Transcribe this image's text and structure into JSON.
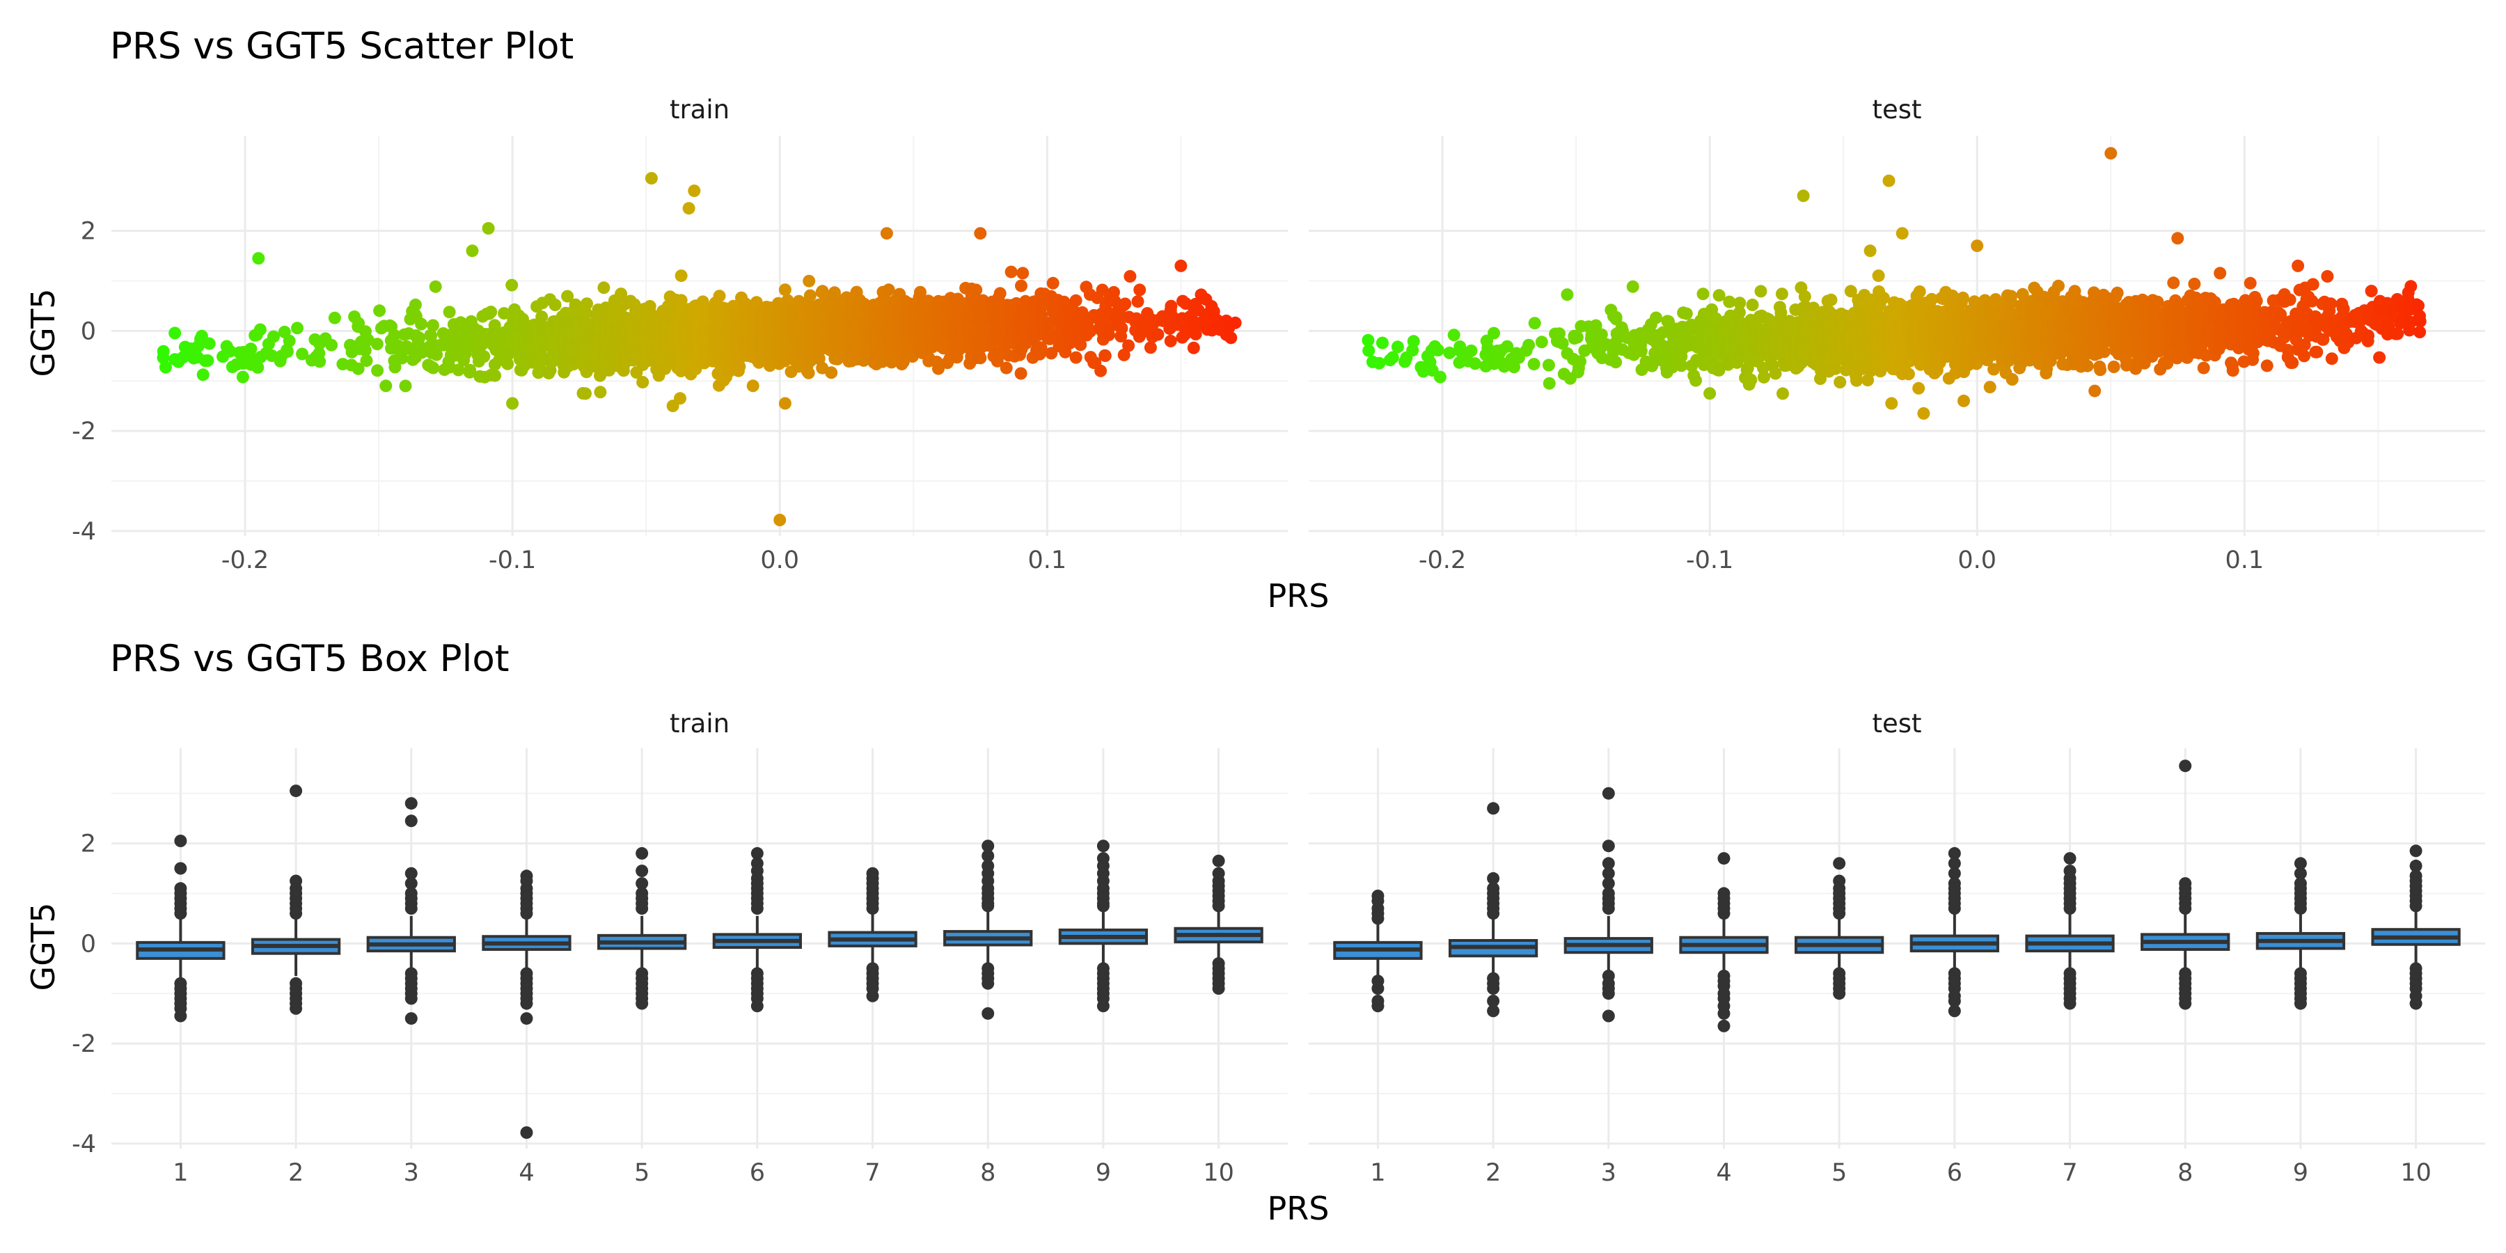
{
  "chart_data": [
    {
      "type": "scatter",
      "title": "PRS vs GGT5 Scatter Plot",
      "xlabel": "PRS",
      "ylabel": "GGT5",
      "facets": [
        "train",
        "test"
      ],
      "xlim": [
        -0.25,
        0.19
      ],
      "ylim": [
        -4.1,
        3.9
      ],
      "xticks": [
        -0.2,
        -0.1,
        0.0,
        0.1
      ],
      "xtick_labels": [
        "-0.2",
        "-0.1",
        "0.0",
        "0.1"
      ],
      "yticks": [
        -4,
        -2,
        0,
        2
      ],
      "ytick_labels": [
        "-4",
        "-2",
        "0",
        "2"
      ],
      "color_gradient": {
        "low": "#22ff00",
        "mid": "#cfa800",
        "high": "#ff1a00",
        "by": "PRS"
      },
      "grid": true,
      "legend": "none",
      "trend": {
        "train": {
          "slope": 1.0,
          "intercept": -0.05,
          "sd": 0.32
        },
        "test": {
          "slope": 1.0,
          "intercept": -0.05,
          "sd": 0.32
        }
      },
      "x_range": {
        "train": [
          -0.232,
          0.172
        ],
        "test": [
          -0.228,
          0.166
        ]
      },
      "outliers": {
        "train": [
          [
            -0.048,
            3.05
          ],
          [
            -0.032,
            2.8
          ],
          [
            -0.034,
            2.45
          ],
          [
            -0.109,
            2.05
          ],
          [
            0.0,
            -3.78
          ],
          [
            -0.195,
            1.45
          ],
          [
            -0.115,
            1.6
          ],
          [
            0.04,
            1.95
          ],
          [
            0.075,
            1.95
          ],
          [
            -0.04,
            -1.5
          ],
          [
            0.002,
            -1.45
          ],
          [
            -0.1,
            -1.45
          ],
          [
            -0.14,
            -1.1
          ],
          [
            0.15,
            1.3
          ],
          [
            0.12,
            -0.8
          ]
        ],
        "test": [
          [
            0.05,
            3.55
          ],
          [
            -0.033,
            3.0
          ],
          [
            -0.065,
            2.7
          ],
          [
            -0.028,
            1.95
          ],
          [
            -0.04,
            1.6
          ],
          [
            0.075,
            1.85
          ],
          [
            0.0,
            1.7
          ],
          [
            -0.02,
            -1.65
          ],
          [
            -0.032,
            -1.45
          ],
          [
            -0.1,
            -1.25
          ],
          [
            -0.16,
            -1.05
          ],
          [
            0.12,
            1.3
          ],
          [
            -0.005,
            -1.4
          ],
          [
            0.044,
            -1.2
          ]
        ]
      }
    },
    {
      "type": "box",
      "title": "PRS vs GGT5 Box Plot",
      "xlabel": "PRS",
      "ylabel": "GGT5",
      "facets": [
        "train",
        "test"
      ],
      "categories": [
        "1",
        "2",
        "3",
        "4",
        "5",
        "6",
        "7",
        "8",
        "9",
        "10"
      ],
      "ylim": [
        -4.1,
        3.9
      ],
      "yticks": [
        -4,
        -2,
        0,
        2
      ],
      "ytick_labels": [
        "-4",
        "-2",
        "0",
        "2"
      ],
      "box_fill": "#3a8fd6",
      "box_line": "#333333",
      "grid": true,
      "boxes": {
        "train": [
          {
            "q1": -0.3,
            "med": -0.12,
            "q3": 0.02,
            "lo": -0.75,
            "hi": 0.5,
            "out": [
              2.05,
              1.5,
              1.1,
              1.0,
              0.9,
              0.8,
              0.7,
              0.6,
              -0.8,
              -0.9,
              -1.0,
              -1.1,
              -1.2,
              -1.3,
              -1.45
            ]
          },
          {
            "q1": -0.2,
            "med": -0.05,
            "q3": 0.08,
            "lo": -0.65,
            "hi": 0.55,
            "out": [
              3.05,
              1.25,
              1.1,
              1.0,
              0.9,
              0.8,
              0.7,
              0.6,
              -0.8,
              -0.9,
              -1.0,
              -1.1,
              -1.2,
              -1.3
            ]
          },
          {
            "q1": -0.15,
            "med": -0.02,
            "q3": 0.12,
            "lo": -0.55,
            "hi": 0.55,
            "out": [
              2.8,
              2.45,
              1.4,
              1.2,
              1.0,
              0.9,
              0.8,
              0.7,
              -0.6,
              -0.7,
              -0.8,
              -0.9,
              -1.0,
              -1.1,
              -1.5
            ]
          },
          {
            "q1": -0.12,
            "med": 0.0,
            "q3": 0.14,
            "lo": -0.55,
            "hi": 0.55,
            "out": [
              1.35,
              1.25,
              1.1,
              1.0,
              0.9,
              0.8,
              0.7,
              0.6,
              -0.6,
              -0.7,
              -0.8,
              -0.9,
              -1.0,
              -1.1,
              -1.2,
              -1.5,
              -3.78
            ]
          },
          {
            "q1": -0.1,
            "med": 0.02,
            "q3": 0.16,
            "lo": -0.5,
            "hi": 0.55,
            "out": [
              1.8,
              1.45,
              1.2,
              1.0,
              0.9,
              0.8,
              0.7,
              -0.6,
              -0.7,
              -0.8,
              -0.9,
              -1.0,
              -1.1,
              -1.2
            ]
          },
          {
            "q1": -0.08,
            "med": 0.05,
            "q3": 0.18,
            "lo": -0.5,
            "hi": 0.55,
            "out": [
              1.8,
              1.6,
              1.45,
              1.3,
              1.2,
              1.1,
              1.0,
              0.9,
              0.8,
              0.7,
              -0.6,
              -0.7,
              -0.8,
              -0.9,
              -1.0,
              -1.1,
              -1.25
            ]
          },
          {
            "q1": -0.05,
            "med": 0.08,
            "q3": 0.22,
            "lo": -0.45,
            "hi": 0.6,
            "out": [
              1.4,
              1.3,
              1.2,
              1.1,
              1.0,
              0.9,
              0.8,
              0.7,
              -0.5,
              -0.6,
              -0.7,
              -0.8,
              -0.9,
              -1.05
            ]
          },
          {
            "q1": -0.03,
            "med": 0.1,
            "q3": 0.24,
            "lo": -0.45,
            "hi": 0.65,
            "out": [
              1.95,
              1.75,
              1.55,
              1.4,
              1.25,
              1.1,
              1.0,
              0.9,
              0.8,
              0.75,
              -0.5,
              -0.6,
              -0.7,
              -0.8,
              -1.4
            ]
          },
          {
            "q1": 0.0,
            "med": 0.13,
            "q3": 0.27,
            "lo": -0.45,
            "hi": 0.65,
            "out": [
              1.95,
              1.7,
              1.55,
              1.4,
              1.25,
              1.1,
              1.0,
              0.9,
              0.8,
              0.75,
              -0.5,
              -0.6,
              -0.7,
              -0.8,
              -0.9,
              -1.0,
              -1.1,
              -1.25
            ]
          },
          {
            "q1": 0.03,
            "med": 0.17,
            "q3": 0.3,
            "lo": -0.35,
            "hi": 0.7,
            "out": [
              1.65,
              1.4,
              1.25,
              1.15,
              1.05,
              0.95,
              0.85,
              0.75,
              -0.4,
              -0.5,
              -0.6,
              -0.7,
              -0.8,
              -0.9
            ]
          }
        ],
        "test": [
          {
            "q1": -0.3,
            "med": -0.12,
            "q3": 0.02,
            "lo": -0.65,
            "hi": 0.45,
            "out": [
              0.95,
              0.85,
              0.7,
              0.6,
              0.5,
              -0.75,
              -0.9,
              -1.15,
              -1.25
            ]
          },
          {
            "q1": -0.25,
            "med": -0.07,
            "q3": 0.06,
            "lo": -0.6,
            "hi": 0.5,
            "out": [
              2.7,
              1.3,
              1.1,
              1.0,
              0.9,
              0.8,
              0.7,
              0.6,
              -0.7,
              -0.8,
              -0.9,
              -1.15,
              -1.35
            ]
          },
          {
            "q1": -0.18,
            "med": -0.03,
            "q3": 0.1,
            "lo": -0.55,
            "hi": 0.55,
            "out": [
              3.0,
              1.95,
              1.6,
              1.4,
              1.2,
              1.0,
              0.9,
              0.8,
              0.7,
              -0.65,
              -0.8,
              -0.9,
              -1.0,
              -1.45
            ]
          },
          {
            "q1": -0.18,
            "med": -0.03,
            "q3": 0.12,
            "lo": -0.55,
            "hi": 0.55,
            "out": [
              1.7,
              1.0,
              0.9,
              0.8,
              0.7,
              0.6,
              -0.65,
              -0.75,
              -0.85,
              -1.0,
              -1.1,
              -1.25,
              -1.4,
              -1.65
            ]
          },
          {
            "q1": -0.18,
            "med": -0.03,
            "q3": 0.12,
            "lo": -0.55,
            "hi": 0.55,
            "out": [
              1.6,
              1.25,
              1.1,
              1.0,
              0.9,
              0.8,
              0.7,
              0.6,
              -0.6,
              -0.7,
              -0.8,
              -0.9,
              -1.0
            ]
          },
          {
            "q1": -0.15,
            "med": 0.0,
            "q3": 0.15,
            "lo": -0.55,
            "hi": 0.6,
            "out": [
              1.8,
              1.6,
              1.4,
              1.2,
              1.1,
              1.0,
              0.9,
              0.8,
              0.7,
              -0.6,
              -0.7,
              -0.8,
              -0.9,
              -1.05,
              -1.15,
              -1.35
            ]
          },
          {
            "q1": -0.15,
            "med": 0.0,
            "q3": 0.15,
            "lo": -0.6,
            "hi": 0.6,
            "out": [
              1.7,
              1.45,
              1.3,
              1.2,
              1.1,
              1.0,
              0.9,
              0.8,
              0.7,
              -0.6,
              -0.7,
              -0.8,
              -0.9,
              -1.0,
              -1.1,
              -1.2
            ]
          },
          {
            "q1": -0.12,
            "med": 0.03,
            "q3": 0.18,
            "lo": -0.55,
            "hi": 0.6,
            "out": [
              3.55,
              1.2,
              1.1,
              1.0,
              0.9,
              0.8,
              0.7,
              -0.6,
              -0.7,
              -0.8,
              -0.9,
              -1.0,
              -1.1,
              -1.2
            ]
          },
          {
            "q1": -0.1,
            "med": 0.05,
            "q3": 0.2,
            "lo": -0.5,
            "hi": 0.6,
            "out": [
              1.6,
              1.4,
              1.2,
              1.1,
              1.0,
              0.9,
              0.8,
              0.7,
              -0.6,
              -0.7,
              -0.8,
              -0.9,
              -1.0,
              -1.1,
              -1.2
            ]
          },
          {
            "q1": -0.02,
            "med": 0.12,
            "q3": 0.28,
            "lo": -0.4,
            "hi": 0.65,
            "out": [
              1.85,
              1.55,
              1.35,
              1.25,
              1.15,
              1.05,
              0.95,
              0.85,
              0.75,
              -0.5,
              -0.6,
              -0.7,
              -0.8,
              -0.9,
              -1.05,
              -1.2
            ]
          }
        ]
      }
    }
  ]
}
